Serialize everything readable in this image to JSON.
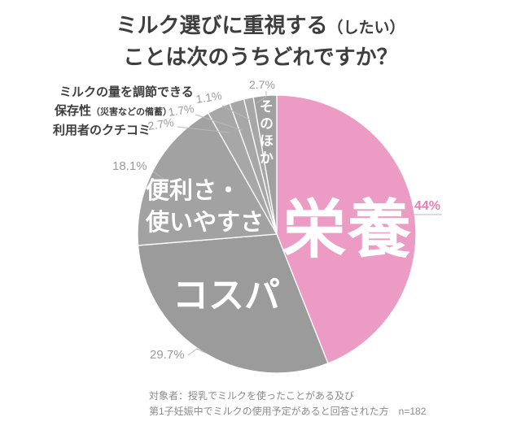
{
  "title": {
    "line1_main": "ミルク選びに重視する",
    "line1_paren": "（したい）",
    "line2": "ことは次のうちどれですか？"
  },
  "chart_data": {
    "type": "pie",
    "title": "ミルク選びに重視する（したい）ことは次のうちどれですか？",
    "unit": "%",
    "rotation": "clockwise-from-top",
    "legend": "labels-on-slices",
    "slices": [
      {
        "label": "栄養",
        "value": 44,
        "percent_label": "44%",
        "color": "#ec9bc5"
      },
      {
        "label": "コスパ",
        "value": 29.7,
        "percent_label": "29.7%",
        "color": "#9b9b9b"
      },
      {
        "label": "便利さ・使いやすさ",
        "label_lines": [
          "便利さ・",
          "使いやすさ"
        ],
        "value": 18.1,
        "percent_label": "18.1%",
        "color": "#a2a2a2"
      },
      {
        "label": "利用者のクチコミ",
        "value": 2.7,
        "percent_label": "2.7%",
        "color": "#a7a7a7"
      },
      {
        "label": "保存性（災害などの備蓄）",
        "label_main": "保存性",
        "label_paren": "（災害などの備蓄）",
        "value": 1.7,
        "percent_label": "1.7%",
        "color": "#a7a7a7"
      },
      {
        "label": "ミルクの量を調節できる",
        "value": 1.1,
        "percent_label": "1.1%",
        "color": "#a7a7a7"
      },
      {
        "label": "そのほか",
        "value": 2.7,
        "percent_label": "2.7%",
        "color": "#a0a0a0"
      }
    ]
  },
  "footnote": {
    "line1": "対象者：授乳でミルクを使ったことがある及び",
    "line2": "第1子妊娠中でミルクの使用予定があると回答された方　n=182"
  },
  "colors": {
    "background": "#ffffff",
    "slice_stroke": "#ffffff",
    "leader_line": "#b8b8b8",
    "percent_gray": "#9a9a9a",
    "percent_pink": "#e77fb3",
    "label_dark": "#3e3e3e",
    "footnote_gray": "#8a8a8a"
  }
}
